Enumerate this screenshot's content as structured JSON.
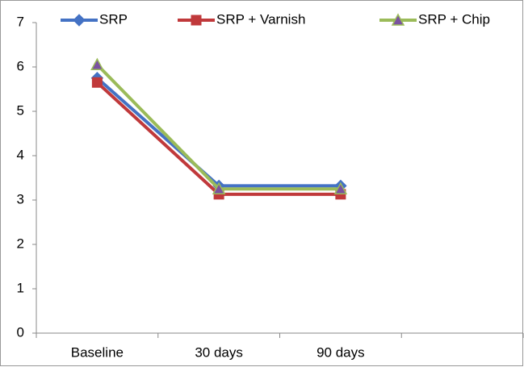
{
  "chart_data": {
    "type": "line",
    "categories": [
      "Baseline",
      "30 days",
      "90 days",
      null
    ],
    "series": [
      {
        "name": "SRP",
        "color": "#4472c4",
        "marker": "diamond",
        "values": [
          5.75,
          3.32,
          3.32,
          null
        ]
      },
      {
        "name": "SRP + Varnish",
        "color": "#c0393b",
        "marker": "square",
        "values": [
          5.65,
          3.13,
          3.13,
          null
        ]
      },
      {
        "name": "SRP + Chip",
        "color": "#9bbb59",
        "marker": "triangle",
        "values": [
          6.05,
          3.25,
          3.25,
          null
        ]
      }
    ],
    "ylim": [
      0,
      7
    ],
    "yticks": [
      0,
      1,
      2,
      3,
      4,
      5,
      6,
      7
    ],
    "grid": false,
    "legend": "top"
  }
}
